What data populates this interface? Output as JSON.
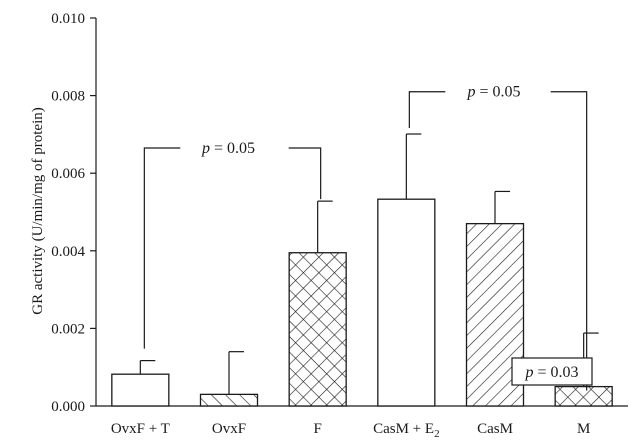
{
  "chart_data": {
    "type": "bar",
    "ylabel": "GR activity (U/min/mg of protein)",
    "ylim": [
      0,
      0.01
    ],
    "yticks": [
      "0.000",
      "0.002",
      "0.004",
      "0.006",
      "0.008",
      "0.010"
    ],
    "categories": [
      {
        "label": "OvxF + T",
        "sub": ""
      },
      {
        "label": "OvxF",
        "sub": ""
      },
      {
        "label": "F",
        "sub": ""
      },
      {
        "label": "CasM + E",
        "sub": "2"
      },
      {
        "label": "CasM",
        "sub": ""
      },
      {
        "label": "M",
        "sub": ""
      }
    ],
    "values": [
      0.00082,
      0.0003,
      0.00395,
      0.00533,
      0.0047,
      0.0005
    ],
    "errors": [
      0.00035,
      0.0011,
      0.00133,
      0.00168,
      0.00083,
      0.00138
    ],
    "patterns": [
      "none",
      "diag-sparse",
      "crosshatch",
      "none",
      "diag-back",
      "crosshatch"
    ],
    "annotations": [
      {
        "text_italic": "p",
        "text_rest": " = 0.05",
        "from": 0,
        "to": 2,
        "level": 0.00665,
        "boxed": false
      },
      {
        "text_italic": "p",
        "text_rest": " = 0.05",
        "from": 3,
        "to": 5,
        "level": 0.0081,
        "boxed": false
      },
      {
        "text_italic": "p",
        "text_rest": " = 0.03",
        "from": 5,
        "to": 5,
        "level": 0.00085,
        "boxed": true
      }
    ],
    "grid": false,
    "legend": "none"
  }
}
